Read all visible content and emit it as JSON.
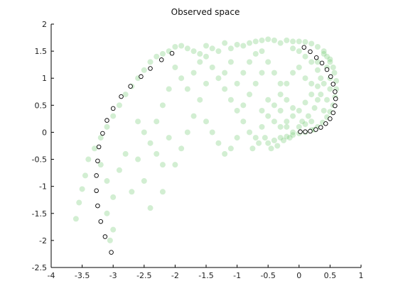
{
  "chart_data": {
    "type": "scatter",
    "title": "Observed space",
    "xlabel": "",
    "ylabel": "",
    "xlim": [
      -4,
      1
    ],
    "ylim": [
      -2.5,
      2
    ],
    "grid": false,
    "x_ticks": [
      "-4",
      "-3.5",
      "-3",
      "-2.5",
      "-2",
      "-1.5",
      "-1",
      "-0.5",
      "0",
      "0.5",
      "1"
    ],
    "y_ticks": [
      "2",
      "1.5",
      "1",
      "0.5",
      "0",
      "-0.5",
      "-1",
      "-1.5",
      "-2",
      "-2.5"
    ],
    "colors": {
      "cloud": "#7dcd7d",
      "markers_stroke": "#000000",
      "markers_fill": "#ffffff"
    },
    "series": [
      {
        "marker": "filled-circle",
        "alpha": 0.35,
        "points": [
          [
            -0.2,
            1.7
          ],
          [
            -0.1,
            1.68
          ],
          [
            0.0,
            1.68
          ],
          [
            0.1,
            1.67
          ],
          [
            0.2,
            1.64
          ],
          [
            0.3,
            1.58
          ],
          [
            0.4,
            1.5
          ],
          [
            0.45,
            1.4
          ],
          [
            0.5,
            1.3
          ],
          [
            0.55,
            1.2
          ],
          [
            0.57,
            1.1
          ],
          [
            0.6,
            0.95
          ],
          [
            0.6,
            0.8
          ],
          [
            0.58,
            0.65
          ],
          [
            0.55,
            0.5
          ],
          [
            0.5,
            0.38
          ],
          [
            0.45,
            0.28
          ],
          [
            0.38,
            0.18
          ],
          [
            0.3,
            0.1
          ],
          [
            0.2,
            0.04
          ],
          [
            0.1,
            0.0
          ],
          [
            0.0,
            -0.02
          ],
          [
            -0.1,
            -0.05
          ],
          [
            -0.2,
            -0.08
          ],
          [
            -0.3,
            -0.1
          ],
          [
            -0.4,
            -0.15
          ],
          [
            -0.5,
            -0.2
          ],
          [
            -0.3,
            0.1
          ],
          [
            -0.2,
            0.2
          ],
          [
            -0.1,
            0.3
          ],
          [
            0.0,
            0.4
          ],
          [
            0.1,
            0.55
          ],
          [
            0.2,
            0.7
          ],
          [
            0.3,
            0.85
          ],
          [
            0.35,
            1.0
          ],
          [
            0.3,
            1.15
          ],
          [
            0.2,
            1.3
          ],
          [
            0.1,
            1.4
          ],
          [
            0.0,
            1.5
          ],
          [
            -0.1,
            1.55
          ],
          [
            -0.3,
            1.65
          ],
          [
            -0.4,
            1.7
          ],
          [
            -0.5,
            1.72
          ],
          [
            -0.6,
            1.7
          ],
          [
            -0.7,
            1.68
          ],
          [
            -0.8,
            1.65
          ],
          [
            -0.9,
            1.6
          ],
          [
            -1.0,
            1.62
          ],
          [
            -1.1,
            1.55
          ],
          [
            -1.2,
            1.65
          ],
          [
            -1.3,
            1.5
          ],
          [
            -1.4,
            1.55
          ],
          [
            -1.5,
            1.6
          ],
          [
            -1.6,
            1.45
          ],
          [
            -1.7,
            1.5
          ],
          [
            -1.8,
            1.55
          ],
          [
            -1.9,
            1.6
          ],
          [
            -2.0,
            1.58
          ],
          [
            -2.1,
            1.5
          ],
          [
            -2.2,
            1.45
          ],
          [
            -2.3,
            1.4
          ],
          [
            -2.4,
            1.3
          ],
          [
            -2.5,
            1.15
          ],
          [
            -2.6,
            1.0
          ],
          [
            -2.7,
            0.85
          ],
          [
            -2.8,
            0.7
          ],
          [
            -2.9,
            0.5
          ],
          [
            -3.0,
            0.3
          ],
          [
            -3.1,
            0.1
          ],
          [
            -3.2,
            -0.1
          ],
          [
            -3.3,
            -0.3
          ],
          [
            -3.4,
            -0.5
          ],
          [
            -3.45,
            -0.8
          ],
          [
            -3.5,
            -1.05
          ],
          [
            -3.55,
            -1.3
          ],
          [
            -3.6,
            -1.6
          ],
          [
            -3.2,
            -0.6
          ],
          [
            -3.1,
            -0.9
          ],
          [
            -3.0,
            -1.2
          ],
          [
            -3.1,
            -1.5
          ],
          [
            -3.0,
            -1.8
          ],
          [
            -3.05,
            -2.0
          ],
          [
            -2.6,
            0.2
          ],
          [
            -2.5,
            0.0
          ],
          [
            -2.4,
            -0.2
          ],
          [
            -2.3,
            -0.4
          ],
          [
            -2.2,
            -0.6
          ],
          [
            -2.5,
            -0.9
          ],
          [
            -2.7,
            -1.1
          ],
          [
            -2.4,
            -1.4
          ],
          [
            -2.2,
            -1.1
          ],
          [
            -2.0,
            -0.6
          ],
          [
            -1.9,
            -0.3
          ],
          [
            -1.8,
            0.0
          ],
          [
            -1.7,
            0.3
          ],
          [
            -1.6,
            0.6
          ],
          [
            -1.5,
            0.9
          ],
          [
            -1.4,
            1.2
          ],
          [
            -1.3,
            1.0
          ],
          [
            -1.2,
            0.8
          ],
          [
            -1.1,
            0.6
          ],
          [
            -1.0,
            0.4
          ],
          [
            -0.9,
            0.2
          ],
          [
            -0.8,
            0.0
          ],
          [
            -0.7,
            -0.1
          ],
          [
            -0.6,
            0.1
          ],
          [
            -0.5,
            0.3
          ],
          [
            -0.4,
            0.5
          ],
          [
            -0.3,
            0.7
          ],
          [
            -0.2,
            0.9
          ],
          [
            -0.1,
            1.1
          ],
          [
            0.0,
            1.2
          ],
          [
            0.1,
            1.0
          ],
          [
            0.2,
            0.9
          ],
          [
            0.3,
            0.6
          ],
          [
            0.4,
            0.4
          ],
          [
            0.45,
            0.6
          ],
          [
            0.5,
            0.8
          ],
          [
            0.5,
            1.0
          ],
          [
            0.45,
            1.2
          ],
          [
            -1.5,
            0.2
          ],
          [
            -1.4,
            0.0
          ],
          [
            -1.3,
            -0.2
          ],
          [
            -1.2,
            -0.4
          ],
          [
            -1.1,
            -0.3
          ],
          [
            -1.0,
            -0.1
          ],
          [
            -0.9,
            0.5
          ],
          [
            -0.8,
            0.7
          ],
          [
            -0.7,
            0.9
          ],
          [
            -0.6,
            1.1
          ],
          [
            -0.5,
            1.3
          ],
          [
            -0.4,
            1.1
          ],
          [
            -0.3,
            0.9
          ],
          [
            -0.2,
            0.6
          ],
          [
            -0.1,
            0.45
          ],
          [
            0.05,
            0.2
          ],
          [
            0.15,
            0.3
          ],
          [
            0.25,
            0.45
          ],
          [
            0.35,
            0.7
          ],
          [
            0.4,
            0.9
          ],
          [
            -2.0,
            1.2
          ],
          [
            -1.9,
            1.0
          ],
          [
            -1.8,
            0.8
          ],
          [
            -1.7,
            1.1
          ],
          [
            -1.6,
            1.3
          ],
          [
            -1.5,
            1.4
          ],
          [
            -2.1,
            0.8
          ],
          [
            -2.2,
            0.5
          ],
          [
            -2.3,
            0.2
          ],
          [
            -2.1,
            -0.1
          ],
          [
            -2.8,
            -0.4
          ],
          [
            -2.9,
            -0.7
          ],
          [
            -2.6,
            -0.5
          ],
          [
            -1.0,
            0.9
          ],
          [
            -0.9,
            1.1
          ],
          [
            -0.8,
            1.3
          ],
          [
            -0.7,
            1.45
          ],
          [
            -0.6,
            1.5
          ],
          [
            -1.1,
            1.3
          ],
          [
            -1.2,
            1.1
          ],
          [
            -0.6,
            0.4
          ],
          [
            -0.5,
            0.6
          ],
          [
            -0.4,
            0.2
          ],
          [
            -0.3,
            0.4
          ],
          [
            -0.2,
            0.1
          ],
          [
            -0.1,
            0.0
          ],
          [
            0.0,
            0.1
          ],
          [
            0.1,
            0.15
          ],
          [
            0.2,
            0.2
          ],
          [
            0.25,
            0.05
          ],
          [
            -0.45,
            -0.3
          ],
          [
            -0.35,
            -0.25
          ],
          [
            -0.55,
            -0.1
          ],
          [
            -0.65,
            -0.2
          ],
          [
            -0.75,
            -0.3
          ],
          [
            -0.25,
            -0.15
          ],
          [
            -0.15,
            -0.1
          ],
          [
            0.3,
            1.3
          ],
          [
            0.4,
            1.45
          ],
          [
            0.5,
            1.35
          ]
        ]
      },
      {
        "marker": "open-circle",
        "points": [
          [
            -2.05,
            1.46
          ],
          [
            -2.22,
            1.34
          ],
          [
            -2.4,
            1.18
          ],
          [
            -2.55,
            1.03
          ],
          [
            -2.72,
            0.85
          ],
          [
            -2.87,
            0.66
          ],
          [
            -3.0,
            0.44
          ],
          [
            -3.1,
            0.22
          ],
          [
            -3.17,
            -0.02
          ],
          [
            -3.23,
            -0.27
          ],
          [
            -3.25,
            -0.53
          ],
          [
            -3.27,
            -0.8
          ],
          [
            -3.27,
            -1.08
          ],
          [
            -3.25,
            -1.36
          ],
          [
            -3.2,
            -1.65
          ],
          [
            -3.13,
            -1.93
          ],
          [
            -3.03,
            -2.22
          ],
          [
            0.08,
            1.57
          ],
          [
            0.18,
            1.49
          ],
          [
            0.28,
            1.38
          ],
          [
            0.37,
            1.28
          ],
          [
            0.45,
            1.16
          ],
          [
            0.51,
            1.03
          ],
          [
            0.55,
            0.89
          ],
          [
            0.58,
            0.75
          ],
          [
            0.59,
            0.62
          ],
          [
            0.58,
            0.49
          ],
          [
            0.55,
            0.36
          ],
          [
            0.5,
            0.25
          ],
          [
            0.43,
            0.16
          ],
          [
            0.35,
            0.09
          ],
          [
            0.27,
            0.05
          ],
          [
            0.18,
            0.02
          ],
          [
            0.1,
            0.01
          ],
          [
            0.02,
            0.01
          ]
        ]
      }
    ]
  }
}
